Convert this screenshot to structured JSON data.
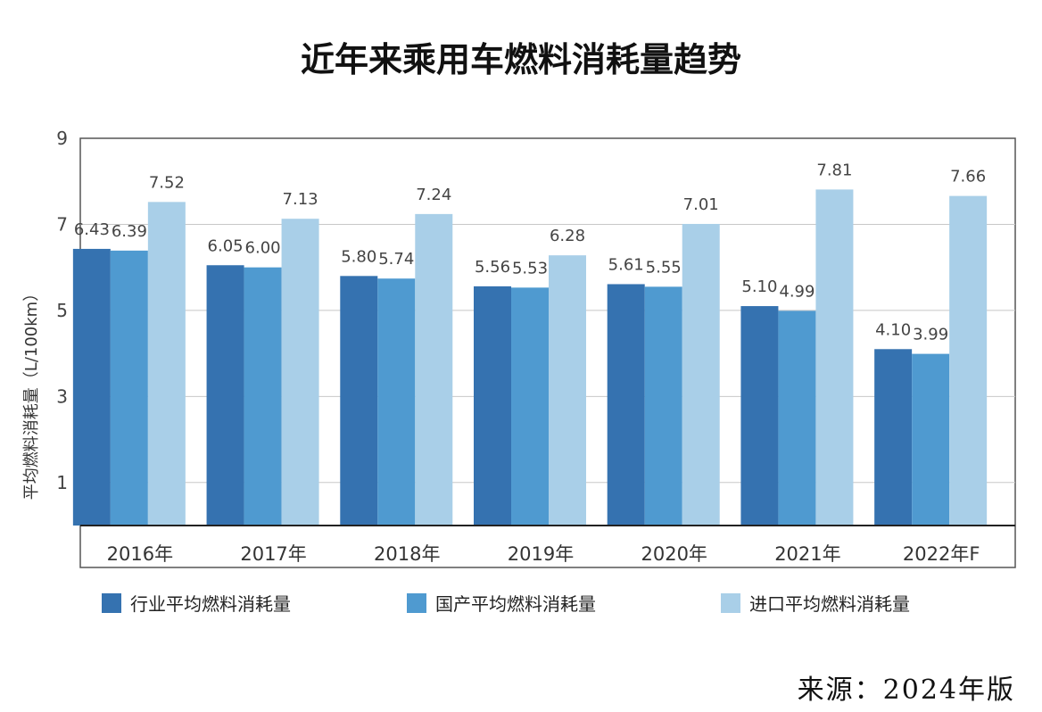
{
  "chart_data": {
    "type": "bar",
    "title": "近年来乘用车燃料消耗量趋势",
    "ylabel": "平均燃料消耗量（L/100km）",
    "xlabel": "",
    "categories": [
      "2016年",
      "2017年",
      "2018年",
      "2019年",
      "2020年",
      "2021年",
      "2022年F"
    ],
    "series": [
      {
        "name": "行业平均燃料消耗量",
        "color": "#3572b0",
        "values": [
          6.43,
          6.05,
          5.8,
          5.56,
          5.61,
          5.1,
          4.1
        ],
        "labels": [
          "6.43",
          "6.05",
          "5.80",
          "5.56",
          "5.61",
          "5.10",
          "4.10"
        ]
      },
      {
        "name": "国产平均燃料消耗量",
        "color": "#4f9ad0",
        "values": [
          6.39,
          6.0,
          5.74,
          5.53,
          5.55,
          4.99,
          3.99
        ],
        "labels": [
          "6.39",
          "6.00",
          "5.74",
          "5.53",
          "5.55",
          "4.99",
          "3.99"
        ]
      },
      {
        "name": "进口平均燃料消耗量",
        "color": "#a9cfe8",
        "values": [
          7.52,
          7.13,
          7.24,
          6.28,
          7.01,
          7.81,
          7.66
        ],
        "labels": [
          "7.52",
          "7.13",
          "7.24",
          "6.28",
          "7.01",
          "7.81",
          "7.66"
        ]
      }
    ],
    "yticks": [
      "1",
      "3",
      "5",
      "7",
      "9"
    ],
    "ylim": [
      0,
      9
    ],
    "grid": true,
    "legend_position": "bottom"
  },
  "source": "来源：2024年版"
}
